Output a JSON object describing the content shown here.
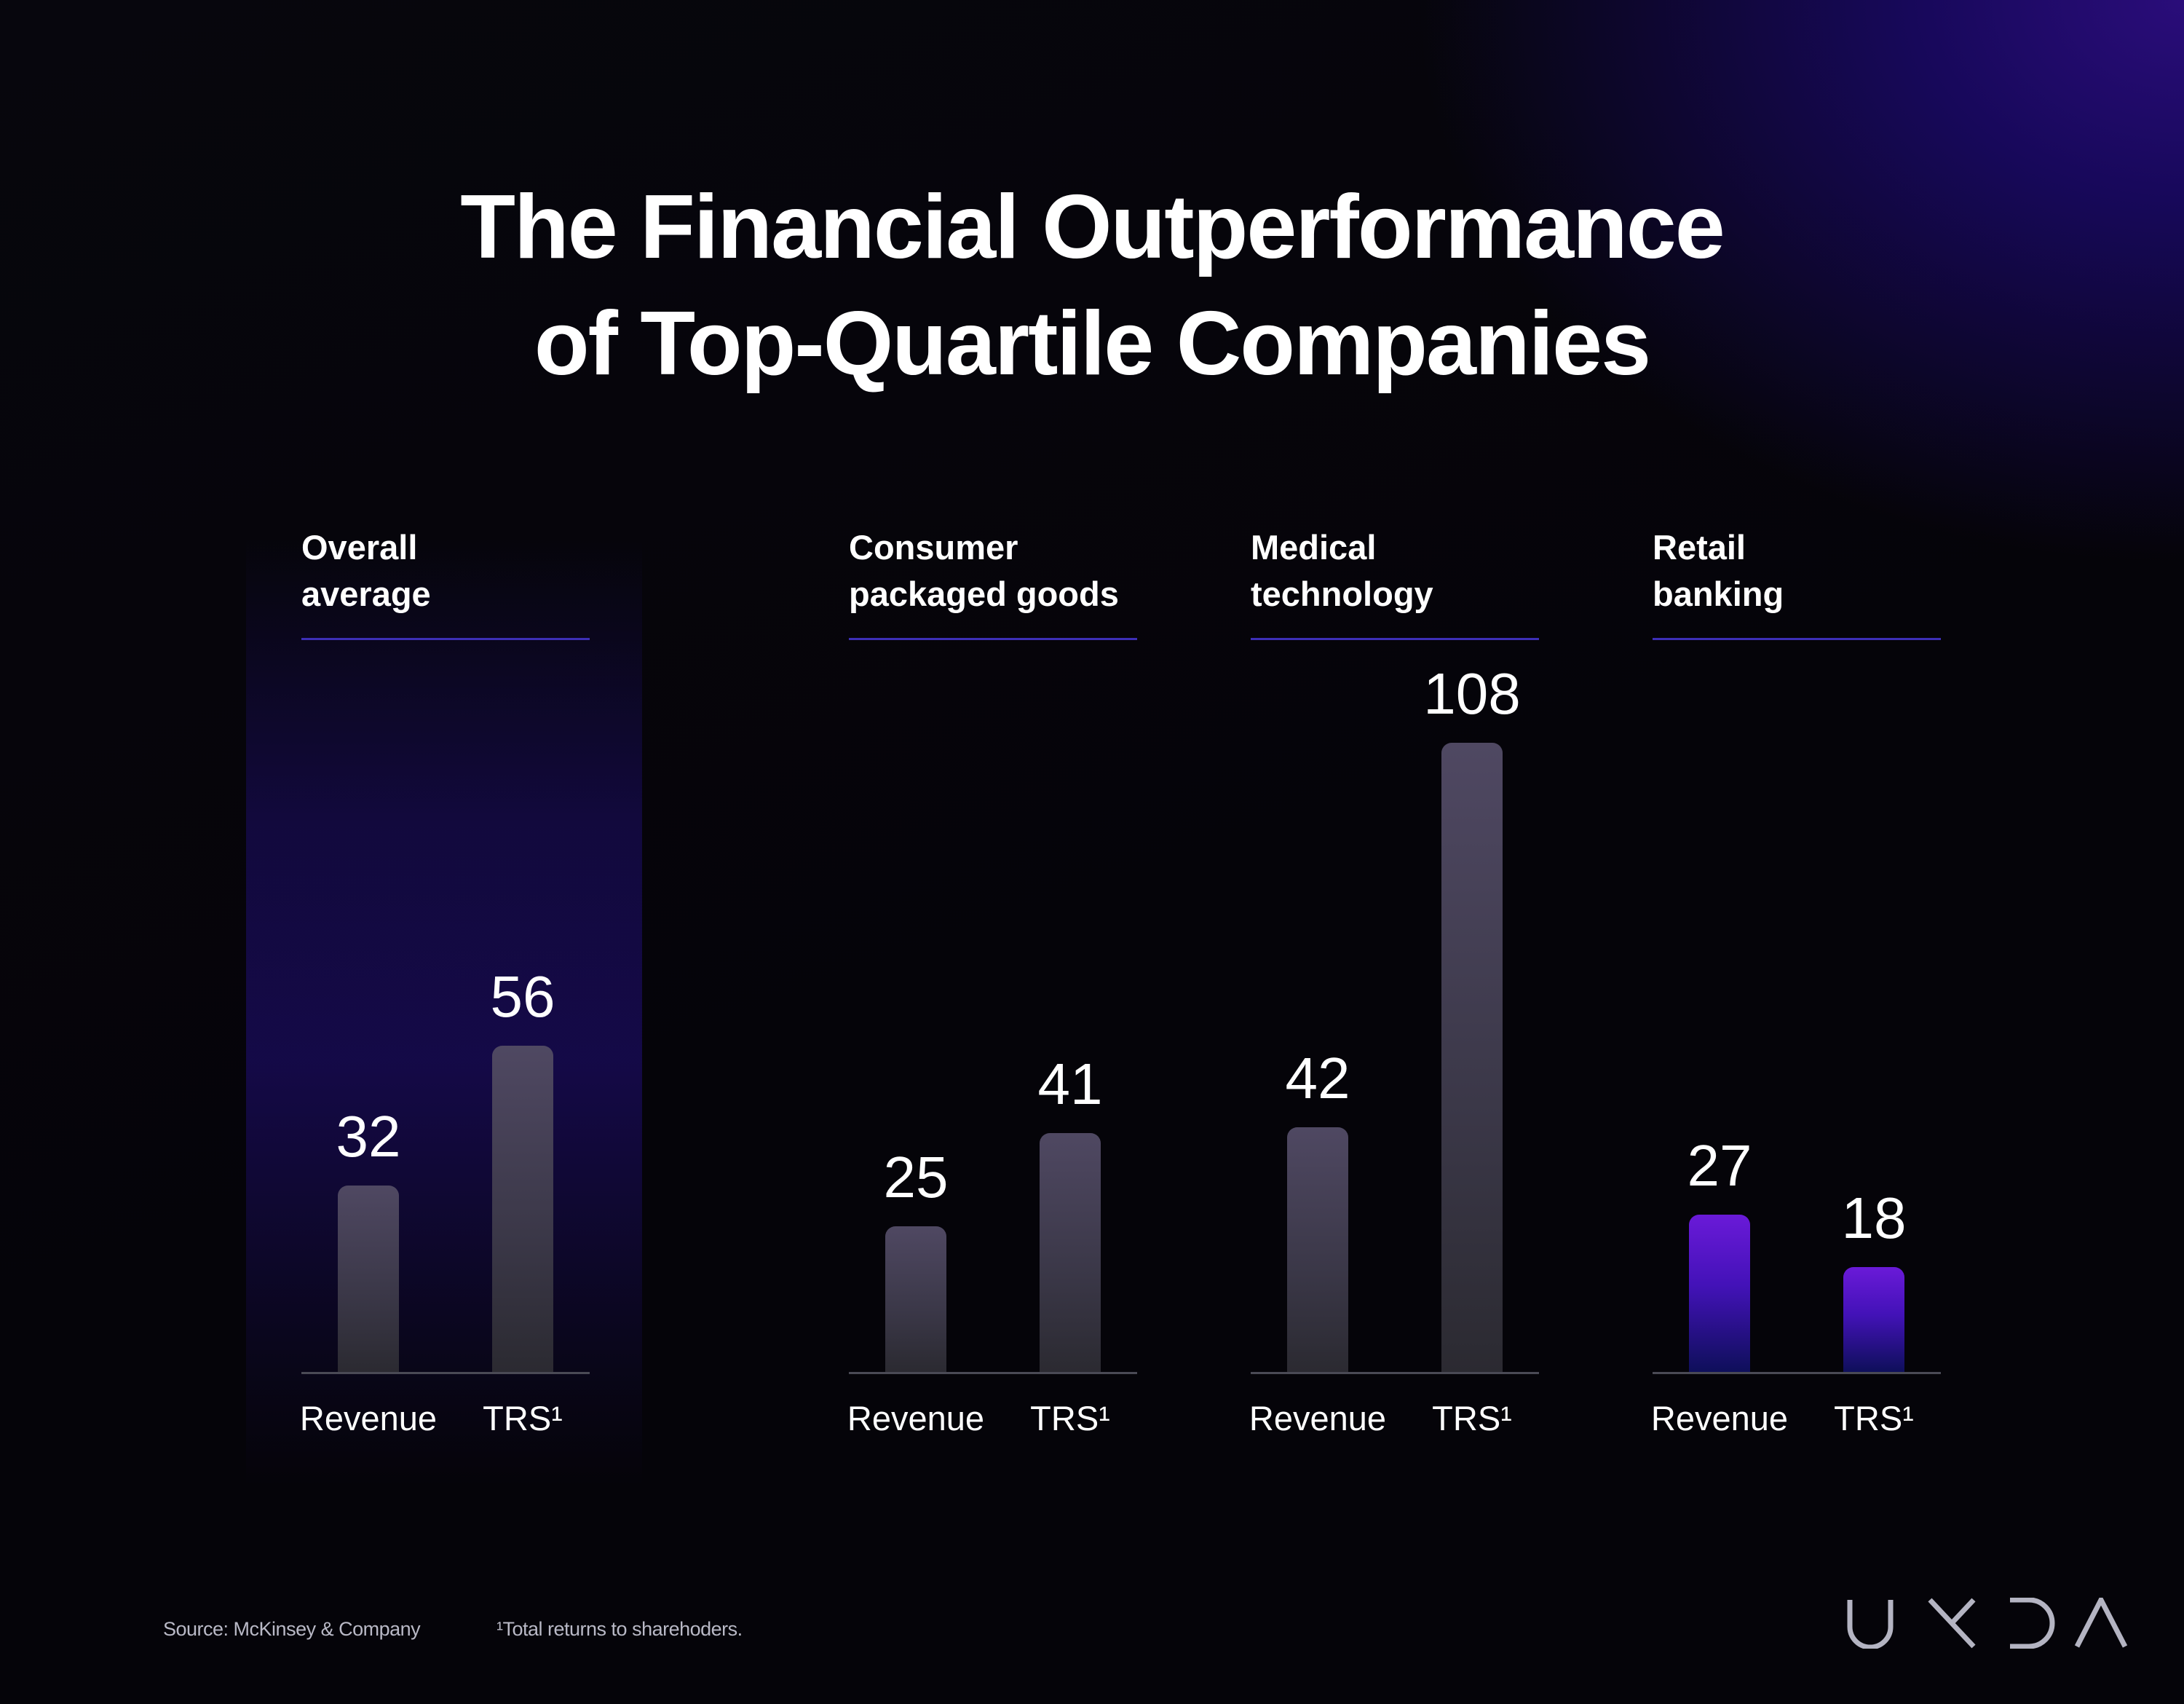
{
  "title": {
    "line1": "The Financial Outperformance",
    "line2": "of Top-Quartile Companies"
  },
  "chart_data": {
    "type": "bar",
    "title": "The Financial Outperformance of Top-Quartile Companies",
    "categories": [
      "Revenue",
      "TRS¹"
    ],
    "ylim": [
      0,
      108
    ],
    "grid": false,
    "groups": [
      {
        "title": [
          "Overall",
          "average"
        ],
        "highlighted": true,
        "bar_color": "gray",
        "labels": [
          "Revenue",
          "TRS¹"
        ],
        "values": [
          32,
          56
        ]
      },
      {
        "title": [
          "Consumer",
          "packaged goods"
        ],
        "highlighted": false,
        "bar_color": "gray",
        "labels": [
          "Revenue",
          "TRS¹"
        ],
        "values": [
          25,
          41
        ]
      },
      {
        "title": [
          "Medical",
          "technology"
        ],
        "highlighted": false,
        "bar_color": "gray",
        "labels": [
          "Revenue",
          "TRS¹"
        ],
        "values": [
          42,
          108
        ]
      },
      {
        "title": [
          "Retail",
          "banking"
        ],
        "highlighted": false,
        "bar_color": "purple",
        "labels": [
          "Revenue",
          "TRS¹"
        ],
        "values": [
          27,
          18
        ]
      }
    ]
  },
  "colors": {
    "accent": "#3d2fb6",
    "purple_bar": "#6a1ad8",
    "gray_bar": "#4f4862",
    "baseline": "#4a4a55"
  },
  "footer": {
    "source": "Source: McKinsey & Company",
    "footnote": "¹Total returns to sharehoders."
  },
  "logo": {
    "text": "UXDA",
    "icon": "uxda-logo"
  }
}
